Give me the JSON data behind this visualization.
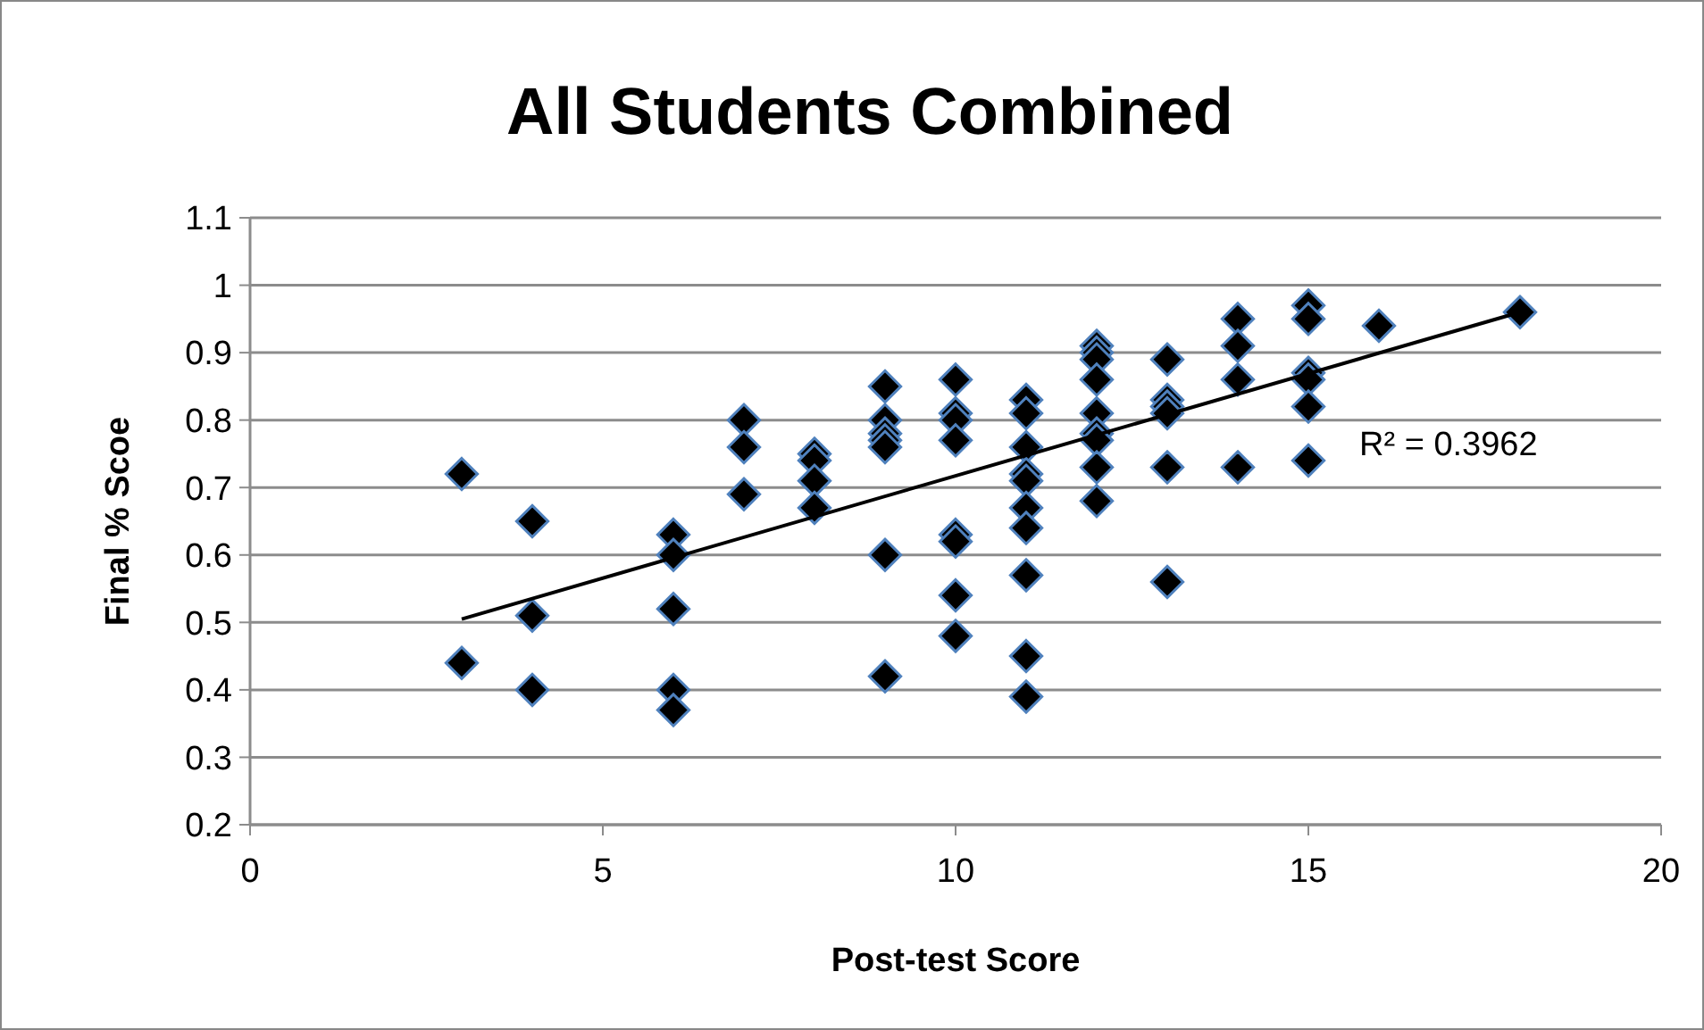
{
  "chart_data": {
    "type": "scatter",
    "title": "All Students Combined",
    "xlabel": "Post-test Score",
    "ylabel": "Final % Scoe",
    "xlim": [
      0,
      20
    ],
    "xticks": [
      0,
      5,
      10,
      15,
      20
    ],
    "ylim": [
      0.2,
      1.1
    ],
    "yticks": [
      0.2,
      0.3,
      0.4,
      0.5,
      0.6,
      0.7,
      0.8,
      0.9,
      1,
      1.1
    ],
    "grid": "y",
    "marker": "diamond",
    "annotations": [
      "R² = 0.3962"
    ],
    "series": [
      {
        "color": "#000000",
        "x": [
          3,
          3,
          4,
          4,
          4,
          6,
          6,
          6,
          6,
          6,
          7,
          7,
          7,
          8,
          8,
          8,
          8,
          9,
          9,
          9,
          9,
          9,
          9,
          9,
          10,
          10,
          10,
          10,
          10,
          10,
          10,
          10,
          11,
          11,
          11,
          11,
          11,
          11,
          11,
          11,
          11,
          11,
          12,
          12,
          12,
          12,
          12,
          12,
          12,
          12,
          12,
          13,
          13,
          13,
          13,
          13,
          13,
          14,
          14,
          14,
          14,
          15,
          15,
          15,
          15,
          15,
          15,
          16,
          18
        ],
        "values": [
          0.72,
          0.44,
          0.65,
          0.51,
          0.4,
          0.63,
          0.6,
          0.52,
          0.4,
          0.37,
          0.8,
          0.76,
          0.69,
          0.75,
          0.74,
          0.71,
          0.67,
          0.85,
          0.8,
          0.78,
          0.77,
          0.76,
          0.6,
          0.42,
          0.86,
          0.81,
          0.8,
          0.77,
          0.63,
          0.62,
          0.54,
          0.48,
          0.83,
          0.81,
          0.76,
          0.72,
          0.71,
          0.67,
          0.64,
          0.57,
          0.45,
          0.39,
          0.91,
          0.9,
          0.89,
          0.86,
          0.81,
          0.78,
          0.77,
          0.73,
          0.68,
          0.89,
          0.83,
          0.82,
          0.81,
          0.73,
          0.56,
          0.95,
          0.91,
          0.86,
          0.73,
          0.97,
          0.95,
          0.87,
          0.86,
          0.82,
          0.74,
          0.94,
          0.96
        ]
      },
      {
        "type": "line",
        "color": "#000000",
        "x": [
          3,
          18
        ],
        "values": [
          0.505,
          0.96
        ],
        "marker": "none",
        "line_style": "solid"
      }
    ]
  }
}
